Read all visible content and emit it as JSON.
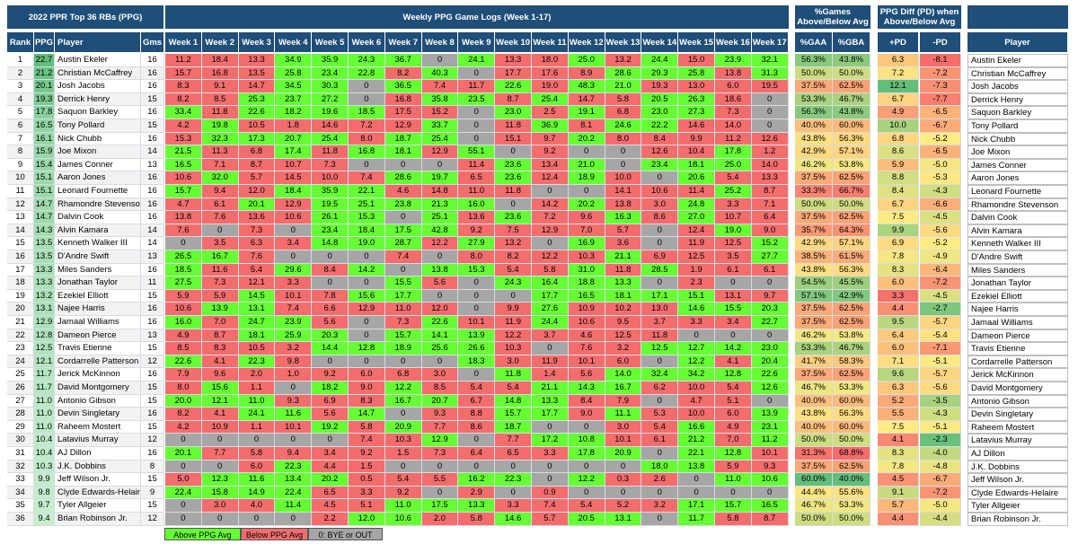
{
  "titles": {
    "main": "2022 PPR Top 36 RBs (PPG)",
    "logs": "Weekly PPG Game Logs (Week 1-17)",
    "games": "%Games Above/Below Avg",
    "diff": "PPG Diff (PD) when Above/Below Avg"
  },
  "columns": {
    "rank": "Rank",
    "ppg": "PPG",
    "player": "Player",
    "gms": "Gms",
    "weeks": [
      "Week 1",
      "Week 2",
      "Week 3",
      "Week 4",
      "Week 5",
      "Week 6",
      "Week 7",
      "Week 8",
      "Week 9",
      "Week 10",
      "Week 11",
      "Week 12",
      "Week 13",
      "Week 14",
      "Week 15",
      "Week 16",
      "Week 17"
    ],
    "gaa": "%GAA",
    "gba": "%GBA",
    "pd_plus": "+PD",
    "pd_minus": "-PD",
    "player2": "Player"
  },
  "colors": {
    "header": "#1f4e79",
    "above": "#66ff33",
    "below": "#f46d6d",
    "bye": "#a6a6a6"
  },
  "legend": {
    "above": "Above PPG Avg",
    "below": "Below PPG Avg",
    "bye": "0: BYE or OUT"
  },
  "players": [
    {
      "rank": "1",
      "ppg": "22.7",
      "name": "Austin Ekeler",
      "gms": "16",
      "weeks": [
        "11.2",
        "18.4",
        "13.3",
        "34.9",
        "35.9",
        "24.3",
        "36.7",
        "0",
        "24.1",
        "13.3",
        "18.0",
        "25.0",
        "13.2",
        "24.4",
        "15.0",
        "23.9",
        "32.1"
      ],
      "gaa": "56.3%",
      "gba": "43.8%",
      "pdp": "6.3",
      "pdm": "-8.1"
    },
    {
      "rank": "2",
      "ppg": "21.2",
      "name": "Christian McCaffrey",
      "gms": "16",
      "weeks": [
        "15.7",
        "16.8",
        "13.5",
        "25.8",
        "23.4",
        "22.8",
        "8.2",
        "40.3",
        "0",
        "17.7",
        "17.6",
        "8.9",
        "28.6",
        "29.3",
        "25.8",
        "13.8",
        "31.3"
      ],
      "gaa": "50.0%",
      "gba": "50.0%",
      "pdp": "7.2",
      "pdm": "-7.2"
    },
    {
      "rank": "3",
      "ppg": "20.1",
      "name": "Josh Jacobs",
      "gms": "16",
      "weeks": [
        "8.3",
        "9.1",
        "14.7",
        "34.5",
        "30.3",
        "0",
        "36.5",
        "7.4",
        "11.7",
        "22.6",
        "19.0",
        "48.3",
        "21.0",
        "19.3",
        "13.0",
        "6.0",
        "19.5"
      ],
      "gaa": "37.5%",
      "gba": "62.5%",
      "pdp": "12.1",
      "pdm": "-7.3"
    },
    {
      "rank": "4",
      "ppg": "19.3",
      "name": "Derrick Henry",
      "gms": "15",
      "weeks": [
        "8.2",
        "8.5",
        "25.3",
        "23.7",
        "27.2",
        "0",
        "16.8",
        "35.8",
        "23.5",
        "8.7",
        "25.4",
        "14.7",
        "5.8",
        "20.5",
        "26.3",
        "18.6",
        "0"
      ],
      "gaa": "53.3%",
      "gba": "46.7%",
      "pdp": "6.7",
      "pdm": "-7.7"
    },
    {
      "rank": "5",
      "ppg": "17.8",
      "name": "Saquon Barkley",
      "gms": "16",
      "weeks": [
        "33.4",
        "11.8",
        "22.6",
        "18.2",
        "19.6",
        "18.5",
        "17.5",
        "15.2",
        "0",
        "23.0",
        "2.5",
        "19.1",
        "6.8",
        "23.0",
        "27.3",
        "7.3",
        "0"
      ],
      "gaa": "56.3%",
      "gba": "43.8%",
      "pdp": "4.9",
      "pdm": "-6.5"
    },
    {
      "rank": "6",
      "ppg": "16.5",
      "name": "Tony Pollard",
      "gms": "15",
      "weeks": [
        "4.2",
        "19.8",
        "10.5",
        "1.8",
        "14.6",
        "7.2",
        "12.9",
        "33.7",
        "0",
        "11.8",
        "36.9",
        "8.1",
        "24.6",
        "22.2",
        "14.6",
        "14.0",
        "0"
      ],
      "gaa": "40.0%",
      "gba": "60.0%",
      "pdp": "10.0",
      "pdm": "-6.7"
    },
    {
      "rank": "7",
      "ppg": "16.1",
      "name": "Nick Chubb",
      "gms": "16",
      "weeks": [
        "15.3",
        "32.3",
        "17.3",
        "20.7",
        "25.4",
        "8.0",
        "18.7",
        "25.4",
        "0",
        "15.1",
        "9.7",
        "20.2",
        "8.0",
        "8.4",
        "9.9",
        "11.2",
        "12.6"
      ],
      "gaa": "43.8%",
      "gba": "56.3%",
      "pdp": "6.8",
      "pdm": "-5.2"
    },
    {
      "rank": "8",
      "ppg": "15.9",
      "name": "Joe Mixon",
      "gms": "14",
      "weeks": [
        "21.5",
        "11.3",
        "6.8",
        "17.4",
        "11.8",
        "16.8",
        "18.1",
        "12.9",
        "55.1",
        "0",
        "9.2",
        "0",
        "0",
        "12.6",
        "10.4",
        "17.8",
        "1.2"
      ],
      "gaa": "42.9%",
      "gba": "57.1%",
      "pdp": "8.6",
      "pdm": "-6.5"
    },
    {
      "rank": "9",
      "ppg": "15.4",
      "name": "James Conner",
      "gms": "13",
      "weeks": [
        "16.5",
        "7.1",
        "8.7",
        "10.7",
        "7.3",
        "0",
        "0",
        "0",
        "11.4",
        "23.6",
        "13.4",
        "21.0",
        "0",
        "23.4",
        "18.1",
        "25.0",
        "14.0"
      ],
      "gaa": "46.2%",
      "gba": "53.8%",
      "pdp": "5.9",
      "pdm": "-5.0"
    },
    {
      "rank": "10",
      "ppg": "15.1",
      "name": "Aaron Jones",
      "gms": "16",
      "weeks": [
        "10.6",
        "32.0",
        "5.7",
        "14.5",
        "10.0",
        "7.4",
        "28.6",
        "19.7",
        "6.5",
        "23.6",
        "12.4",
        "18.9",
        "10.0",
        "0",
        "20.6",
        "5.4",
        "13.3"
      ],
      "gaa": "37.5%",
      "gba": "62.5%",
      "pdp": "8.8",
      "pdm": "-5.3"
    },
    {
      "rank": "11",
      "ppg": "15.1",
      "name": "Leonard Fournette",
      "gms": "16",
      "weeks": [
        "15.7",
        "9.4",
        "12.0",
        "18.4",
        "35.9",
        "22.1",
        "4.6",
        "14.8",
        "11.0",
        "11.8",
        "0",
        "0",
        "14.1",
        "10.6",
        "11.4",
        "25.2",
        "8.7"
      ],
      "gaa": "33.3%",
      "gba": "66.7%",
      "pdp": "8.4",
      "pdm": "-4.3"
    },
    {
      "rank": "12",
      "ppg": "14.7",
      "name": "Rhamondre Stevenson",
      "gms": "16",
      "weeks": [
        "4.7",
        "6.1",
        "20.1",
        "12.9",
        "19.5",
        "25.1",
        "23.8",
        "21.3",
        "16.0",
        "0",
        "14.2",
        "20.2",
        "13.8",
        "3.0",
        "24.8",
        "3.3",
        "7.1"
      ],
      "gaa": "50.0%",
      "gba": "50.0%",
      "pdp": "6.7",
      "pdm": "-6.6"
    },
    {
      "rank": "13",
      "ppg": "14.7",
      "name": "Dalvin Cook",
      "gms": "16",
      "weeks": [
        "13.8",
        "7.6",
        "13.6",
        "10.6",
        "26.1",
        "15.3",
        "0",
        "25.1",
        "13.6",
        "23.6",
        "7.2",
        "9.6",
        "16.3",
        "8.6",
        "27.0",
        "10.7",
        "6.4"
      ],
      "gaa": "37.5%",
      "gba": "62.5%",
      "pdp": "7.5",
      "pdm": "-4.5"
    },
    {
      "rank": "14",
      "ppg": "14.3",
      "name": "Alvin Kamara",
      "gms": "14",
      "weeks": [
        "7.6",
        "0",
        "7.3",
        "0",
        "23.4",
        "18.4",
        "17.5",
        "42.8",
        "9.2",
        "7.5",
        "12.9",
        "7.0",
        "5.7",
        "0",
        "12.4",
        "19.0",
        "9.0"
      ],
      "gaa": "35.7%",
      "gba": "64.3%",
      "pdp": "9.9",
      "pdm": "-5.6"
    },
    {
      "rank": "15",
      "ppg": "13.5",
      "name": "Kenneth Walker III",
      "gms": "14",
      "weeks": [
        "0",
        "3.5",
        "6.3",
        "3.4",
        "14.8",
        "19.0",
        "28.7",
        "12.2",
        "27.9",
        "13.2",
        "0",
        "16.9",
        "3.6",
        "0",
        "11.9",
        "12.5",
        "15.2"
      ],
      "gaa": "42.9%",
      "gba": "57.1%",
      "pdp": "6.9",
      "pdm": "-5.2"
    },
    {
      "rank": "16",
      "ppg": "13.5",
      "name": "D'Andre Swift",
      "gms": "13",
      "weeks": [
        "26.5",
        "16.7",
        "7.6",
        "0",
        "0",
        "0",
        "7.4",
        "0",
        "8.0",
        "8.2",
        "12.2",
        "10.3",
        "21.1",
        "6.9",
        "12.5",
        "3.5",
        "27.7"
      ],
      "gaa": "38.5%",
      "gba": "61.5%",
      "pdp": "7.8",
      "pdm": "-4.9"
    },
    {
      "rank": "17",
      "ppg": "13.3",
      "name": "Miles Sanders",
      "gms": "16",
      "weeks": [
        "18.5",
        "11.6",
        "5.4",
        "29.6",
        "8.4",
        "14.2",
        "0",
        "13.8",
        "15.3",
        "5.4",
        "5.8",
        "31.0",
        "11.8",
        "28.5",
        "1.9",
        "6.1",
        "6.1"
      ],
      "gaa": "43.8%",
      "gba": "56.3%",
      "pdp": "8.3",
      "pdm": "-6.4"
    },
    {
      "rank": "18",
      "ppg": "13.3",
      "name": "Jonathan Taylor",
      "gms": "11",
      "weeks": [
        "27.5",
        "7.3",
        "12.1",
        "3.3",
        "0",
        "0",
        "15.5",
        "5.6",
        "0",
        "24.3",
        "16.4",
        "18.8",
        "13.3",
        "0",
        "2.3",
        "0",
        "0"
      ],
      "gaa": "54.5%",
      "gba": "45.5%",
      "pdp": "6.0",
      "pdm": "-7.2"
    },
    {
      "rank": "19",
      "ppg": "13.2",
      "name": "Ezekiel Elliott",
      "gms": "15",
      "weeks": [
        "5.9",
        "5.9",
        "14.5",
        "10.1",
        "7.8",
        "15.6",
        "17.7",
        "0",
        "0",
        "0",
        "17.7",
        "16.5",
        "18.1",
        "17.1",
        "15.1",
        "13.1",
        "9.7"
      ],
      "gaa": "57.1%",
      "gba": "42.9%",
      "pdp": "3.3",
      "pdm": "-4.5"
    },
    {
      "rank": "20",
      "ppg": "13.1",
      "name": "Najee Harris",
      "gms": "16",
      "weeks": [
        "10.6",
        "13.9",
        "13.1",
        "7.4",
        "6.6",
        "12.9",
        "11.0",
        "12.0",
        "0",
        "9.9",
        "27.6",
        "10.9",
        "10.2",
        "13.0",
        "14.6",
        "15.5",
        "20.3"
      ],
      "gaa": "37.5%",
      "gba": "62.5%",
      "pdp": "4.4",
      "pdm": "-2.7"
    },
    {
      "rank": "21",
      "ppg": "12.9",
      "name": "Jamaal Williams",
      "gms": "16",
      "weeks": [
        "16.0",
        "7.0",
        "24.7",
        "23.9",
        "5.6",
        "0",
        "7.3",
        "22.6",
        "10.1",
        "11.9",
        "24.4",
        "10.6",
        "9.5",
        "3.7",
        "3.3",
        "3.4",
        "22.7"
      ],
      "gaa": "37.5%",
      "gba": "62.5%",
      "pdp": "9.5",
      "pdm": "-5.7"
    },
    {
      "rank": "22",
      "ppg": "12.8",
      "name": "Dameon Pierce",
      "gms": "13",
      "weeks": [
        "4.9",
        "8.7",
        "18.1",
        "25.9",
        "20.3",
        "0",
        "15.7",
        "14.1",
        "13.9",
        "12.2",
        "3.7",
        "4.6",
        "12.5",
        "11.8",
        "0",
        "0",
        "0"
      ],
      "gaa": "46.2%",
      "gba": "53.8%",
      "pdp": "6.4",
      "pdm": "-5.4"
    },
    {
      "rank": "23",
      "ppg": "12.5",
      "name": "Travis Etienne",
      "gms": "15",
      "weeks": [
        "8.5",
        "8.3",
        "10.5",
        "3.2",
        "14.4",
        "12.8",
        "18.9",
        "25.6",
        "26.6",
        "10.3",
        "0",
        "7.6",
        "3.2",
        "12.5",
        "12.7",
        "14.2",
        "23.0"
      ],
      "gaa": "53.3%",
      "gba": "46.7%",
      "pdp": "6.0",
      "pdm": "-7.1"
    },
    {
      "rank": "24",
      "ppg": "12.1",
      "name": "Cordarrelle Patterson",
      "gms": "12",
      "weeks": [
        "22.6",
        "4.1",
        "22.3",
        "9.8",
        "0",
        "0",
        "0",
        "0",
        "18.3",
        "3.0",
        "11.9",
        "10.1",
        "6.0",
        "0",
        "12.2",
        "4.1",
        "20.4"
      ],
      "gaa": "41.7%",
      "gba": "58.3%",
      "pdp": "7.1",
      "pdm": "-5.1"
    },
    {
      "rank": "25",
      "ppg": "11.7",
      "name": "Jerick McKinnon",
      "gms": "16",
      "weeks": [
        "7.9",
        "9.6",
        "2.0",
        "1.0",
        "9.2",
        "6.0",
        "6.8",
        "3.0",
        "0",
        "11.8",
        "1.4",
        "5.6",
        "14.0",
        "32.4",
        "34.2",
        "12.8",
        "22.6"
      ],
      "gaa": "37.5%",
      "gba": "62.5%",
      "pdp": "9.6",
      "pdm": "-5.7"
    },
    {
      "rank": "26",
      "ppg": "11.7",
      "name": "David Montgomery",
      "gms": "15",
      "weeks": [
        "8.0",
        "15.6",
        "1.1",
        "0",
        "18.2",
        "9.0",
        "12.2",
        "8.5",
        "5.4",
        "5.4",
        "21.1",
        "14.3",
        "16.7",
        "6.2",
        "10.0",
        "5.4",
        "12.6"
      ],
      "gaa": "46.7%",
      "gba": "53.3%",
      "pdp": "6.3",
      "pdm": "-5.6"
    },
    {
      "rank": "27",
      "ppg": "11.0",
      "name": "Antonio Gibson",
      "gms": "15",
      "weeks": [
        "20.0",
        "12.1",
        "11.0",
        "9.3",
        "6.9",
        "8.3",
        "16.7",
        "20.7",
        "6.7",
        "14.8",
        "13.3",
        "8.4",
        "7.9",
        "0",
        "4.7",
        "5.1",
        "0"
      ],
      "gaa": "40.0%",
      "gba": "60.0%",
      "pdp": "5.2",
      "pdm": "-3.5"
    },
    {
      "rank": "28",
      "ppg": "11.0",
      "name": "Devin Singletary",
      "gms": "16",
      "weeks": [
        "8.2",
        "4.1",
        "24.1",
        "11.6",
        "5.6",
        "14.7",
        "0",
        "9.3",
        "8.8",
        "15.7",
        "17.7",
        "9.0",
        "11.1",
        "5.3",
        "10.0",
        "6.0",
        "13.9"
      ],
      "gaa": "43.8%",
      "gba": "56.3%",
      "pdp": "5.5",
      "pdm": "-4.3"
    },
    {
      "rank": "29",
      "ppg": "11.0",
      "name": "Raheem Mostert",
      "gms": "15",
      "weeks": [
        "4.2",
        "10.9",
        "1.1",
        "10.1",
        "19.2",
        "5.8",
        "20.9",
        "7.7",
        "8.6",
        "18.7",
        "0",
        "0",
        "3.0",
        "5.4",
        "16.6",
        "4.9",
        "23.1"
      ],
      "gaa": "40.0%",
      "gba": "60.0%",
      "pdp": "7.5",
      "pdm": "-5.1"
    },
    {
      "rank": "30",
      "ppg": "10.4",
      "name": "Latavius Murray",
      "gms": "12",
      "weeks": [
        "0",
        "0",
        "0",
        "0",
        "0",
        "7.4",
        "10.3",
        "12.9",
        "0",
        "7.7",
        "17.2",
        "10.8",
        "10.1",
        "6.1",
        "21.2",
        "7.0",
        "11.2"
      ],
      "gaa": "50.0%",
      "gba": "50.0%",
      "pdp": "4.1",
      "pdm": "-2.3"
    },
    {
      "rank": "31",
      "ppg": "10.4",
      "name": "AJ Dillon",
      "gms": "16",
      "weeks": [
        "20.1",
        "7.7",
        "5.8",
        "9.4",
        "3.4",
        "9.2",
        "1.5",
        "7.3",
        "6.4",
        "6.5",
        "3.3",
        "17.8",
        "20.9",
        "0",
        "22.1",
        "12.8",
        "10.1"
      ],
      "gaa": "31.3%",
      "gba": "68.8%",
      "pdp": "8.3",
      "pdm": "-4.0"
    },
    {
      "rank": "32",
      "ppg": "10.3",
      "name": "J.K. Dobbins",
      "gms": "8",
      "weeks": [
        "0",
        "0",
        "6.0",
        "22.3",
        "4.4",
        "1.5",
        "0",
        "0",
        "0",
        "0",
        "0",
        "0",
        "0",
        "18.0",
        "13.8",
        "5.9",
        "9.3"
      ],
      "gaa": "37.5%",
      "gba": "62.5%",
      "pdp": "7.8",
      "pdm": "-4.8"
    },
    {
      "rank": "33",
      "ppg": "9.9",
      "name": "Jeff Wilson Jr.",
      "gms": "15",
      "weeks": [
        "5.0",
        "12.3",
        "11.6",
        "13.4",
        "20.2",
        "0.5",
        "5.4",
        "5.5",
        "16.2",
        "22.3",
        "0",
        "12.2",
        "0.3",
        "2.6",
        "0",
        "11.0",
        "10.6"
      ],
      "gaa": "60.0%",
      "gba": "40.0%",
      "pdp": "4.5",
      "pdm": "-6.7"
    },
    {
      "rank": "34",
      "ppg": "9.8",
      "name": "Clyde Edwards-Helaire",
      "gms": "9",
      "weeks": [
        "22.4",
        "15.8",
        "14.9",
        "22.4",
        "6.5",
        "3.3",
        "9.2",
        "0",
        "2.9",
        "0",
        "0.9",
        "0",
        "0",
        "0",
        "0",
        "0",
        "0"
      ],
      "gaa": "44.4%",
      "gba": "55.6%",
      "pdp": "9.1",
      "pdm": "-7.2"
    },
    {
      "rank": "35",
      "ppg": "9.7",
      "name": "Tyler Allgeier",
      "gms": "15",
      "weeks": [
        "0",
        "3.0",
        "4.0",
        "11.4",
        "4.5",
        "5.1",
        "11.0",
        "17.5",
        "13.3",
        "3.3",
        "7.4",
        "5.4",
        "5.2",
        "3.2",
        "17.1",
        "15.7",
        "16.5"
      ],
      "gaa": "46.7%",
      "gba": "53.3%",
      "pdp": "5.7",
      "pdm": "-5.0"
    },
    {
      "rank": "36",
      "ppg": "9.4",
      "name": "Brian Robinson Jr.",
      "gms": "12",
      "weeks": [
        "0",
        "0",
        "0",
        "0",
        "2.2",
        "12.0",
        "10.6",
        "2.0",
        "5.8",
        "14.6",
        "5.7",
        "20.5",
        "13.1",
        "0",
        "11.7",
        "5.8",
        "8.7"
      ],
      "gaa": "50.0%",
      "gba": "50.0%",
      "pdp": "4.4",
      "pdm": "-4.4"
    }
  ]
}
